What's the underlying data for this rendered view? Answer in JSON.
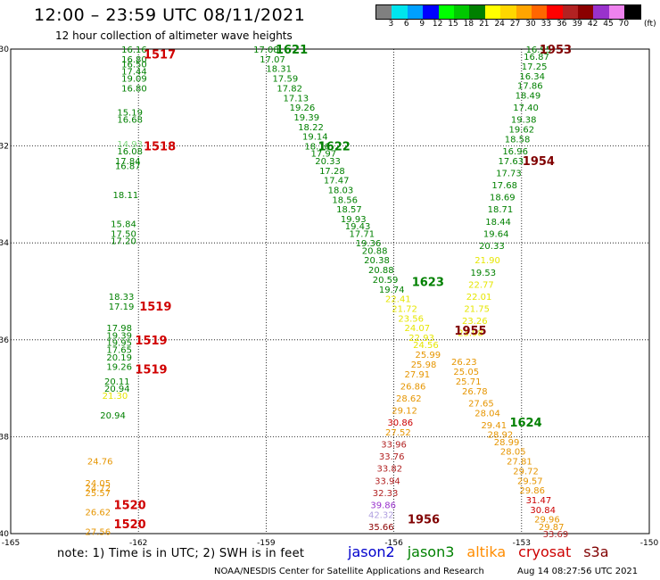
{
  "header": {
    "title": "12:00 – 23:59 UTC 08/11/2021",
    "subtitle": "12 hour collection of altimeter wave heights"
  },
  "legend": {
    "unit_label": "(ft)",
    "ticks": [
      "3",
      "6",
      "9",
      "12",
      "15",
      "18",
      "21",
      "24",
      "27",
      "30",
      "33",
      "36",
      "39",
      "42",
      "45",
      "70"
    ],
    "colors": [
      "#808080",
      "#00e5ee",
      "#00a0ff",
      "#0000ff",
      "#00ff00",
      "#00c800",
      "#008000",
      "#ffff00",
      "#ffd700",
      "#ffa500",
      "#ff6600",
      "#ff0000",
      "#b22222",
      "#8b0000",
      "#9932cc",
      "#ee82ee",
      "#000000"
    ]
  },
  "axes": {
    "x_ticks": [
      "-165",
      "-162",
      "-159",
      "-156",
      "-153",
      "-150"
    ],
    "y_ticks": [
      "-30",
      "-32",
      "-34",
      "-36",
      "-38",
      "-40"
    ]
  },
  "chart_data": {
    "type": "scatter",
    "xlim": [
      -165,
      -150
    ],
    "ylim": [
      -40,
      -30
    ],
    "grid": true,
    "tracks": [
      {
        "label": "1517",
        "lon": -161.5,
        "lat": -30.1,
        "color": "#d00000"
      },
      {
        "label": "1518",
        "lon": -161.5,
        "lat": -32.0,
        "color": "#d00000"
      },
      {
        "label": "1519",
        "lon": -161.6,
        "lat": -35.3,
        "color": "#d00000"
      },
      {
        "label": "1519",
        "lon": -161.7,
        "lat": -36.0,
        "color": "#d00000"
      },
      {
        "label": "1519",
        "lon": -161.7,
        "lat": -36.6,
        "color": "#d00000"
      },
      {
        "label": "1520",
        "lon": -162.2,
        "lat": -39.4,
        "color": "#d00000"
      },
      {
        "label": "1520",
        "lon": -162.2,
        "lat": -39.8,
        "color": "#d00000"
      },
      {
        "label": "1621",
        "lon": -158.4,
        "lat": -30.0,
        "color": "#008000"
      },
      {
        "label": "1622",
        "lon": -157.4,
        "lat": -32.0,
        "color": "#008000"
      },
      {
        "label": "1623",
        "lon": -155.2,
        "lat": -34.8,
        "color": "#008000"
      },
      {
        "label": "1624",
        "lon": -152.9,
        "lat": -37.7,
        "color": "#008000"
      },
      {
        "label": "1953",
        "lon": -152.2,
        "lat": -30.0,
        "color": "#800000"
      },
      {
        "label": "1954",
        "lon": -152.6,
        "lat": -32.3,
        "color": "#800000"
      },
      {
        "label": "1955",
        "lon": -154.2,
        "lat": -35.8,
        "color": "#800000"
      },
      {
        "label": "1956",
        "lon": -155.3,
        "lat": -39.7,
        "color": "#800000"
      }
    ],
    "points": [
      {
        "v": "16.16",
        "lon": -162.1,
        "lat": -30.0,
        "color": "#008000"
      },
      {
        "v": "16.80",
        "lon": -162.1,
        "lat": -30.2,
        "color": "#008000"
      },
      {
        "v": "16.50",
        "lon": -162.1,
        "lat": -30.3,
        "color": "#008000"
      },
      {
        "v": "17.44",
        "lon": -162.1,
        "lat": -30.45,
        "color": "#008000"
      },
      {
        "v": "19.09",
        "lon": -162.1,
        "lat": -30.6,
        "color": "#008000"
      },
      {
        "v": "16.80",
        "lon": -162.1,
        "lat": -30.8,
        "color": "#008000"
      },
      {
        "v": "15.19",
        "lon": -162.2,
        "lat": -31.3,
        "color": "#008000"
      },
      {
        "v": "16.68",
        "lon": -162.2,
        "lat": -31.45,
        "color": "#008000"
      },
      {
        "v": "14.93",
        "lon": -162.2,
        "lat": -31.95,
        "color": "#7cd67c"
      },
      {
        "v": "16.08",
        "lon": -162.2,
        "lat": -32.1,
        "color": "#008000"
      },
      {
        "v": "17.84",
        "lon": -162.25,
        "lat": -32.3,
        "color": "#008000"
      },
      {
        "v": "16.87",
        "lon": -162.25,
        "lat": -32.4,
        "color": "#008000"
      },
      {
        "v": "18.11",
        "lon": -162.3,
        "lat": -33.0,
        "color": "#008000"
      },
      {
        "v": "15.84",
        "lon": -162.35,
        "lat": -33.6,
        "color": "#008000"
      },
      {
        "v": "17.50",
        "lon": -162.35,
        "lat": -33.8,
        "color": "#008000"
      },
      {
        "v": "17.20",
        "lon": -162.35,
        "lat": -33.95,
        "color": "#008000"
      },
      {
        "v": "18.33",
        "lon": -162.4,
        "lat": -35.1,
        "color": "#008000"
      },
      {
        "v": "17.19",
        "lon": -162.4,
        "lat": -35.3,
        "color": "#008000"
      },
      {
        "v": "17.98",
        "lon": -162.45,
        "lat": -35.75,
        "color": "#008000"
      },
      {
        "v": "19.39",
        "lon": -162.45,
        "lat": -35.9,
        "color": "#008000"
      },
      {
        "v": "19.95",
        "lon": -162.45,
        "lat": -36.05,
        "color": "#008000"
      },
      {
        "v": "17.65",
        "lon": -162.45,
        "lat": -36.2,
        "color": "#008000"
      },
      {
        "v": "20.19",
        "lon": -162.45,
        "lat": -36.35,
        "color": "#008000"
      },
      {
        "v": "19.26",
        "lon": -162.45,
        "lat": -36.55,
        "color": "#008000"
      },
      {
        "v": "20.11",
        "lon": -162.5,
        "lat": -36.85,
        "color": "#008000"
      },
      {
        "v": "20.94",
        "lon": -162.5,
        "lat": -37.0,
        "color": "#008000"
      },
      {
        "v": "21.30",
        "lon": -162.55,
        "lat": -37.15,
        "color": "#e6e600"
      },
      {
        "v": "20.94",
        "lon": -162.6,
        "lat": -37.55,
        "color": "#008000"
      },
      {
        "v": "24.76",
        "lon": -162.9,
        "lat": -38.5,
        "color": "#e69500"
      },
      {
        "v": "24.05",
        "lon": -162.95,
        "lat": -38.95,
        "color": "#e69500"
      },
      {
        "v": "24.72",
        "lon": -162.95,
        "lat": -39.05,
        "color": "#e69500"
      },
      {
        "v": "25.57",
        "lon": -162.95,
        "lat": -39.15,
        "color": "#e69500"
      },
      {
        "v": "26.62",
        "lon": -162.95,
        "lat": -39.55,
        "color": "#e69500"
      },
      {
        "v": "27.56",
        "lon": -162.95,
        "lat": -39.95,
        "color": "#e69500"
      },
      {
        "v": "17.08",
        "lon": -159.0,
        "lat": -30.0,
        "color": "#008000"
      },
      {
        "v": "17.07",
        "lon": -158.85,
        "lat": -30.2,
        "color": "#008000"
      },
      {
        "v": "18.31",
        "lon": -158.7,
        "lat": -30.4,
        "color": "#008000"
      },
      {
        "v": "17.59",
        "lon": -158.55,
        "lat": -30.6,
        "color": "#008000"
      },
      {
        "v": "17.82",
        "lon": -158.45,
        "lat": -30.8,
        "color": "#008000"
      },
      {
        "v": "17.13",
        "lon": -158.3,
        "lat": -31.0,
        "color": "#008000"
      },
      {
        "v": "19.26",
        "lon": -158.15,
        "lat": -31.2,
        "color": "#008000"
      },
      {
        "v": "19.39",
        "lon": -158.05,
        "lat": -31.4,
        "color": "#008000"
      },
      {
        "v": "18.22",
        "lon": -157.95,
        "lat": -31.6,
        "color": "#008000"
      },
      {
        "v": "19.14",
        "lon": -157.85,
        "lat": -31.8,
        "color": "#008000"
      },
      {
        "v": "18.16",
        "lon": -157.8,
        "lat": -32.0,
        "color": "#008000"
      },
      {
        "v": "17.97",
        "lon": -157.65,
        "lat": -32.15,
        "color": "#008000"
      },
      {
        "v": "20.33",
        "lon": -157.55,
        "lat": -32.3,
        "color": "#008000"
      },
      {
        "v": "17.28",
        "lon": -157.45,
        "lat": -32.5,
        "color": "#008000"
      },
      {
        "v": "17.47",
        "lon": -157.35,
        "lat": -32.7,
        "color": "#008000"
      },
      {
        "v": "18.03",
        "lon": -157.25,
        "lat": -32.9,
        "color": "#008000"
      },
      {
        "v": "18.56",
        "lon": -157.15,
        "lat": -33.1,
        "color": "#008000"
      },
      {
        "v": "18.57",
        "lon": -157.05,
        "lat": -33.3,
        "color": "#008000"
      },
      {
        "v": "19.93",
        "lon": -156.95,
        "lat": -33.5,
        "color": "#008000"
      },
      {
        "v": "19.43",
        "lon": -156.85,
        "lat": -33.65,
        "color": "#008000"
      },
      {
        "v": "17.71",
        "lon": -156.75,
        "lat": -33.8,
        "color": "#008000"
      },
      {
        "v": "19.36",
        "lon": -156.6,
        "lat": -34.0,
        "color": "#008000"
      },
      {
        "v": "20.88",
        "lon": -156.45,
        "lat": -34.15,
        "color": "#008000"
      },
      {
        "v": "20.38",
        "lon": -156.4,
        "lat": -34.35,
        "color": "#008000"
      },
      {
        "v": "20.88",
        "lon": -156.3,
        "lat": -34.55,
        "color": "#008000"
      },
      {
        "v": "20.59",
        "lon": -156.2,
        "lat": -34.75,
        "color": "#008000"
      },
      {
        "v": "19.74",
        "lon": -156.05,
        "lat": -34.95,
        "color": "#008000"
      },
      {
        "v": "22.41",
        "lon": -155.9,
        "lat": -35.15,
        "color": "#e6e600"
      },
      {
        "v": "21.72",
        "lon": -155.75,
        "lat": -35.35,
        "color": "#e6e600"
      },
      {
        "v": "23.56",
        "lon": -155.6,
        "lat": -35.55,
        "color": "#e6e600"
      },
      {
        "v": "24.07",
        "lon": -155.45,
        "lat": -35.75,
        "color": "#e6e600"
      },
      {
        "v": "22.93",
        "lon": -155.35,
        "lat": -35.95,
        "color": "#e6e600"
      },
      {
        "v": "24.56",
        "lon": -155.25,
        "lat": -36.1,
        "color": "#e6e600"
      },
      {
        "v": "25.99",
        "lon": -155.2,
        "lat": -36.3,
        "color": "#e69500"
      },
      {
        "v": "25.98",
        "lon": -155.3,
        "lat": -36.5,
        "color": "#e69500"
      },
      {
        "v": "27.91",
        "lon": -155.45,
        "lat": -36.7,
        "color": "#e69500"
      },
      {
        "v": "26.86",
        "lon": -155.55,
        "lat": -36.95,
        "color": "#e69500"
      },
      {
        "v": "28.62",
        "lon": -155.65,
        "lat": -37.2,
        "color": "#e69500"
      },
      {
        "v": "29.12",
        "lon": -155.75,
        "lat": -37.45,
        "color": "#e69500"
      },
      {
        "v": "30.86",
        "lon": -155.85,
        "lat": -37.7,
        "color": "#cc0000"
      },
      {
        "v": "27.52",
        "lon": -155.9,
        "lat": -37.9,
        "color": "#e69500"
      },
      {
        "v": "33.96",
        "lon": -156.0,
        "lat": -38.15,
        "color": "#b22222"
      },
      {
        "v": "33.76",
        "lon": -156.05,
        "lat": -38.4,
        "color": "#b22222"
      },
      {
        "v": "33.82",
        "lon": -156.1,
        "lat": -38.65,
        "color": "#b22222"
      },
      {
        "v": "33.94",
        "lon": -156.15,
        "lat": -38.9,
        "color": "#b22222"
      },
      {
        "v": "32.33",
        "lon": -156.2,
        "lat": -39.15,
        "color": "#b22222"
      },
      {
        "v": "39.86",
        "lon": -156.25,
        "lat": -39.4,
        "color": "#9932cc"
      },
      {
        "v": "42.32",
        "lon": -156.3,
        "lat": -39.6,
        "color": "#b0a0e0"
      },
      {
        "v": "35.66",
        "lon": -156.3,
        "lat": -39.85,
        "color": "#8b0000"
      },
      {
        "v": "16.95",
        "lon": -152.6,
        "lat": -30.0,
        "color": "#008000"
      },
      {
        "v": "16.87",
        "lon": -152.65,
        "lat": -30.15,
        "color": "#008000"
      },
      {
        "v": "17.25",
        "lon": -152.7,
        "lat": -30.35,
        "color": "#008000"
      },
      {
        "v": "16.34",
        "lon": -152.75,
        "lat": -30.55,
        "color": "#008000"
      },
      {
        "v": "17.86",
        "lon": -152.8,
        "lat": -30.75,
        "color": "#008000"
      },
      {
        "v": "18.49",
        "lon": -152.85,
        "lat": -30.95,
        "color": "#008000"
      },
      {
        "v": "17.40",
        "lon": -152.9,
        "lat": -31.2,
        "color": "#008000"
      },
      {
        "v": "19.38",
        "lon": -152.95,
        "lat": -31.45,
        "color": "#008000"
      },
      {
        "v": "19.62",
        "lon": -153.0,
        "lat": -31.65,
        "color": "#008000"
      },
      {
        "v": "18.58",
        "lon": -153.1,
        "lat": -31.85,
        "color": "#008000"
      },
      {
        "v": "16.96",
        "lon": -153.15,
        "lat": -32.1,
        "color": "#008000"
      },
      {
        "v": "17.63",
        "lon": -153.25,
        "lat": -32.3,
        "color": "#008000"
      },
      {
        "v": "17.73",
        "lon": -153.3,
        "lat": -32.55,
        "color": "#008000"
      },
      {
        "v": "17.68",
        "lon": -153.4,
        "lat": -32.8,
        "color": "#008000"
      },
      {
        "v": "18.69",
        "lon": -153.45,
        "lat": -33.05,
        "color": "#008000"
      },
      {
        "v": "18.71",
        "lon": -153.5,
        "lat": -33.3,
        "color": "#008000"
      },
      {
        "v": "18.44",
        "lon": -153.55,
        "lat": -33.55,
        "color": "#008000"
      },
      {
        "v": "19.64",
        "lon": -153.6,
        "lat": -33.8,
        "color": "#008000"
      },
      {
        "v": "20.33",
        "lon": -153.7,
        "lat": -34.05,
        "color": "#008000"
      },
      {
        "v": "21.90",
        "lon": -153.8,
        "lat": -34.35,
        "color": "#e6e600"
      },
      {
        "v": "19.53",
        "lon": -153.9,
        "lat": -34.6,
        "color": "#008000"
      },
      {
        "v": "22.77",
        "lon": -153.95,
        "lat": -34.85,
        "color": "#e6e600"
      },
      {
        "v": "22.01",
        "lon": -154.0,
        "lat": -35.1,
        "color": "#e6e600"
      },
      {
        "v": "21.75",
        "lon": -154.05,
        "lat": -35.35,
        "color": "#e6e600"
      },
      {
        "v": "23.26",
        "lon": -154.1,
        "lat": -35.6,
        "color": "#e6e600"
      },
      {
        "v": "23.98",
        "lon": -154.2,
        "lat": -35.85,
        "color": "#e6e600"
      },
      {
        "v": "26.23",
        "lon": -154.35,
        "lat": -36.45,
        "color": "#e69500"
      },
      {
        "v": "25.05",
        "lon": -154.3,
        "lat": -36.65,
        "color": "#e69500"
      },
      {
        "v": "25.71",
        "lon": -154.25,
        "lat": -36.85,
        "color": "#e69500"
      },
      {
        "v": "26.78",
        "lon": -154.1,
        "lat": -37.05,
        "color": "#e69500"
      },
      {
        "v": "27.65",
        "lon": -153.95,
        "lat": -37.3,
        "color": "#e69500"
      },
      {
        "v": "28.04",
        "lon": -153.8,
        "lat": -37.5,
        "color": "#e69500"
      },
      {
        "v": "29.41",
        "lon": -153.65,
        "lat": -37.75,
        "color": "#e69500"
      },
      {
        "v": "28.92",
        "lon": -153.5,
        "lat": -37.95,
        "color": "#e69500"
      },
      {
        "v": "28.99",
        "lon": -153.35,
        "lat": -38.1,
        "color": "#e69500"
      },
      {
        "v": "28.05",
        "lon": -153.2,
        "lat": -38.3,
        "color": "#e69500"
      },
      {
        "v": "27.81",
        "lon": -153.05,
        "lat": -38.5,
        "color": "#e69500"
      },
      {
        "v": "29.72",
        "lon": -152.9,
        "lat": -38.7,
        "color": "#e69500"
      },
      {
        "v": "29.57",
        "lon": -152.8,
        "lat": -38.9,
        "color": "#e69500"
      },
      {
        "v": "29.86",
        "lon": -152.75,
        "lat": -39.1,
        "color": "#e69500"
      },
      {
        "v": "31.47",
        "lon": -152.6,
        "lat": -39.3,
        "color": "#cc0000"
      },
      {
        "v": "30.84",
        "lon": -152.5,
        "lat": -39.5,
        "color": "#cc0000"
      },
      {
        "v": "29.96",
        "lon": -152.4,
        "lat": -39.7,
        "color": "#e69500"
      },
      {
        "v": "29.87",
        "lon": -152.3,
        "lat": -39.85,
        "color": "#e69500"
      },
      {
        "v": "33.69",
        "lon": -152.2,
        "lat": -40.0,
        "color": "#b22222"
      }
    ]
  },
  "footer": {
    "note": "note:  1) Time is in UTC;  2) SWH is in feet",
    "satellites": [
      {
        "name": "jason2",
        "color": "#0000cc"
      },
      {
        "name": "jason3",
        "color": "#008000"
      },
      {
        "name": "altika",
        "color": "#ff8c00"
      },
      {
        "name": "cryosat",
        "color": "#cc0000"
      },
      {
        "name": "s3a",
        "color": "#800000"
      }
    ],
    "credit": "NOAA/NESDIS Center for Satellite Applications and Research",
    "timestamp": "Aug 14 08:27:56 UTC 2021"
  }
}
